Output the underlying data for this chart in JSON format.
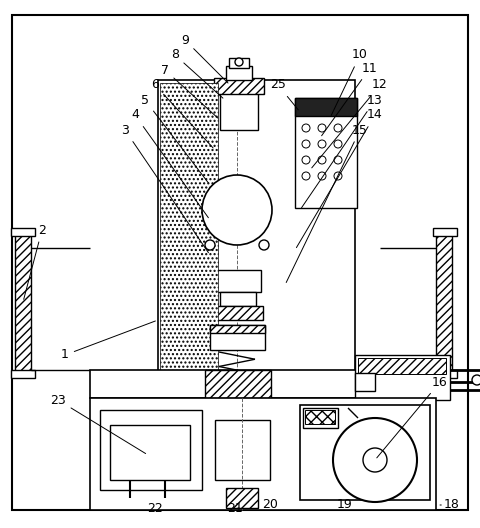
{
  "fig_width": 4.8,
  "fig_height": 5.28,
  "dpi": 100,
  "bg_color": "#ffffff",
  "lc": "#000000",
  "lw": 1.0,
  "fs": 9
}
